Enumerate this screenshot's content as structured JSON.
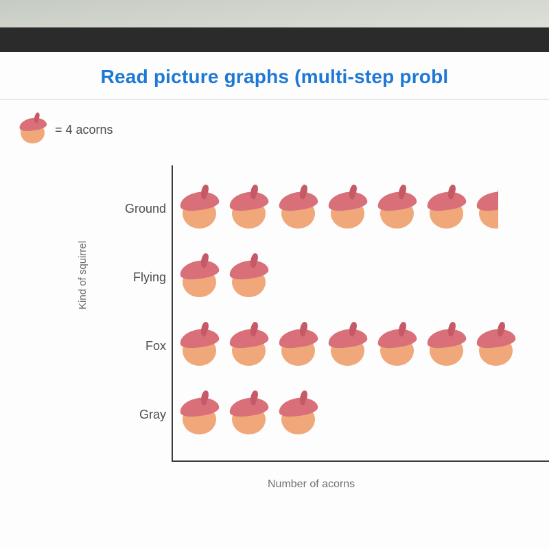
{
  "title": "Read picture graphs (multi-step probl",
  "legend": {
    "icon_name": "acorn-icon",
    "value_text": "= 4 acorns",
    "represents_count": 4
  },
  "chart": {
    "type": "pictograph",
    "y_axis_label": "Kind of squirrel",
    "x_axis_label": "Number of acorns",
    "unit_icon": "acorn",
    "icon_value": 4,
    "rows": [
      {
        "label": "Ground",
        "icon_count": 6.5,
        "value": 26
      },
      {
        "label": "Flying",
        "icon_count": 2,
        "value": 8
      },
      {
        "label": "Fox",
        "icon_count": 7,
        "value": 28
      },
      {
        "label": "Gray",
        "icon_count": 3,
        "value": 12
      }
    ],
    "row_label_fontsize": 18,
    "axis_label_fontsize": 15,
    "axis_color": "#3a3d3a"
  },
  "colors": {
    "title": "#1e78d6",
    "screen_bg": "#fcfdfc",
    "photo_bg": "#e8ece7",
    "dark_bar": "#2b2b2b",
    "divider": "#d0d4ce",
    "acorn_nut": "#f0a77a",
    "acorn_cap": "#d96f78",
    "acorn_stem": "#c55a66",
    "text_muted": "#6a6e6a"
  },
  "typography": {
    "title_fontsize": 28,
    "title_weight": 700,
    "legend_fontsize": 18
  }
}
